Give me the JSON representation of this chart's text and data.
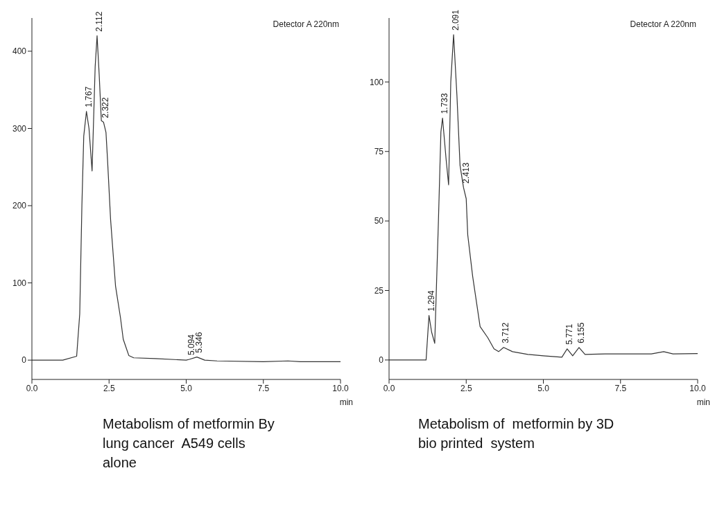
{
  "chart_data": [
    {
      "type": "line",
      "color": "#333333",
      "xlabel": "min",
      "grid": false,
      "legend": false,
      "marker": "none",
      "line_style": "solid",
      "x": [
        0,
        1.0,
        1.45,
        1.55,
        1.62,
        1.68,
        1.767,
        1.85,
        1.95,
        2.05,
        2.112,
        2.18,
        2.25,
        2.322,
        2.4,
        2.45,
        2.55,
        2.71,
        2.87,
        2.96,
        3.14,
        3.3,
        4.0,
        5.0,
        5.1,
        5.346,
        5.6,
        6.0,
        7.5,
        8.3,
        8.7,
        10
      ],
      "values": [
        0,
        0,
        5,
        60,
        200,
        290,
        322,
        300,
        245,
        380,
        420,
        370,
        310,
        308,
        295,
        260,
        182,
        96,
        55,
        27,
        6,
        3,
        2,
        0,
        1,
        4,
        0,
        -1,
        -2,
        -1,
        -2,
        -2
      ],
      "xlim": [
        0,
        10
      ],
      "ylim": [
        -25,
        443
      ],
      "xticks": [
        {
          "value": 0,
          "label": "0.0"
        },
        {
          "value": 2.5,
          "label": "2.5"
        },
        {
          "value": 5,
          "label": "5.0"
        },
        {
          "value": 7.5,
          "label": "7.5"
        },
        {
          "value": 10,
          "label": "10.0"
        }
      ],
      "yticks": [
        0,
        100,
        200,
        300,
        400
      ],
      "annotations": [
        "Detector A 220nm",
        {
          "text": "1.767",
          "x": 1.767,
          "y": 322
        },
        {
          "text": "2.112",
          "x": 2.112,
          "y": 420
        },
        {
          "text": "2.322",
          "x": 2.322,
          "y": 308
        },
        {
          "text": "5.094",
          "x": 5.094,
          "y": 1
        },
        {
          "text": "5.346",
          "x": 5.346,
          "y": 4
        },
        "Metabolism of metformin By lung cancer  A549 cells alone"
      ]
    },
    {
      "type": "line",
      "color": "#333333",
      "xlabel": "min",
      "grid": false,
      "legend": false,
      "marker": "none",
      "line_style": "solid",
      "x": [
        0,
        1.2,
        1.294,
        1.38,
        1.48,
        1.6,
        1.68,
        1.733,
        1.85,
        1.93,
        2.0,
        2.091,
        2.2,
        2.3,
        2.413,
        2.5,
        2.55,
        2.71,
        2.95,
        3.2,
        3.4,
        3.55,
        3.712,
        4.0,
        4.5,
        5.0,
        5.6,
        5.771,
        5.95,
        6.155,
        6.35,
        7.0,
        8.5,
        8.9,
        9.2,
        10
      ],
      "values": [
        0,
        0,
        16,
        10,
        6,
        50,
        82,
        87,
        72,
        63,
        100,
        117,
        95,
        70,
        62,
        58,
        45,
        30,
        12,
        8,
        4,
        3,
        4.5,
        3,
        2,
        1.5,
        1,
        4,
        1.5,
        4.5,
        2,
        2.2,
        2.2,
        3,
        2.2,
        2.3
      ],
      "xlim": [
        0,
        10
      ],
      "ylim": [
        -7,
        123
      ],
      "xticks": [
        {
          "value": 0,
          "label": "0.0"
        },
        {
          "value": 2.5,
          "label": "2.5"
        },
        {
          "value": 5,
          "label": "5.0"
        },
        {
          "value": 7.5,
          "label": "7.5"
        },
        {
          "value": 10,
          "label": "10.0"
        }
      ],
      "yticks": [
        0,
        25,
        50,
        75,
        100
      ],
      "annotations": [
        "Detector A 220nm",
        {
          "text": "1.294",
          "x": 1.294,
          "y": 16
        },
        {
          "text": "1.733",
          "x": 1.733,
          "y": 87
        },
        {
          "text": "2.091",
          "x": 2.091,
          "y": 117
        },
        {
          "text": "2.413",
          "x": 2.413,
          "y": 62
        },
        {
          "text": "3.712",
          "x": 3.712,
          "y": 4.5
        },
        {
          "text": "5.771",
          "x": 5.771,
          "y": 4
        },
        {
          "text": "6.155",
          "x": 6.155,
          "y": 4.5
        },
        "Metabolism of  metformin by 3D bio printed  system"
      ]
    }
  ]
}
